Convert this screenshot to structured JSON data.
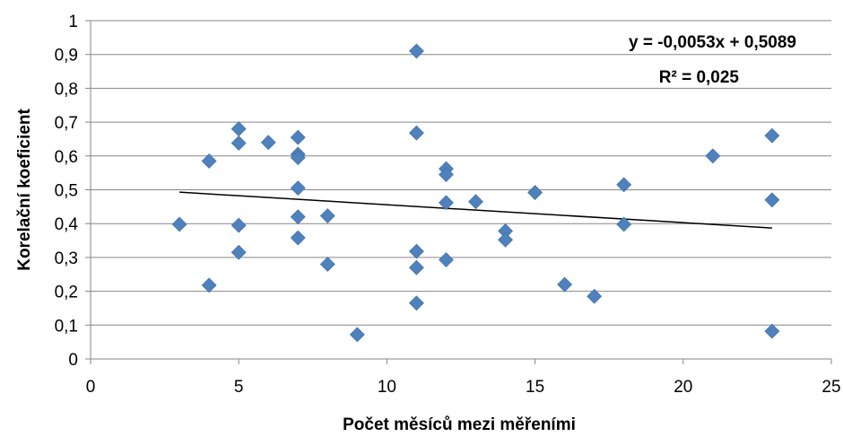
{
  "chart_data": {
    "type": "scatter",
    "xlabel": "Počet měsíců mezi měřeními",
    "ylabel": "Korelační koeficient",
    "xlim": [
      0,
      25
    ],
    "ylim": [
      0,
      1
    ],
    "x_ticks": [
      "0",
      "5",
      "10",
      "15",
      "20",
      "25"
    ],
    "y_ticks": [
      "0",
      "0,1",
      "0,2",
      "0,3",
      "0,4",
      "0,5",
      "0,6",
      "0,7",
      "0,8",
      "0,9",
      "1"
    ],
    "grid": "horizontal",
    "marker": "diamond",
    "marker_color": "#4F81BD",
    "trendline": {
      "type": "linear",
      "slope": -0.0053,
      "intercept": 0.5089,
      "x_range": [
        3,
        23
      ],
      "color": "#000000",
      "equation_label": "y = -0,0053x + 0,5089",
      "r2_label": "R² = 0,025"
    },
    "points": [
      {
        "x": 3,
        "y": 0.398
      },
      {
        "x": 4,
        "y": 0.585
      },
      {
        "x": 4,
        "y": 0.218
      },
      {
        "x": 5,
        "y": 0.68
      },
      {
        "x": 5,
        "y": 0.638
      },
      {
        "x": 5,
        "y": 0.395
      },
      {
        "x": 5,
        "y": 0.315
      },
      {
        "x": 6,
        "y": 0.64
      },
      {
        "x": 7,
        "y": 0.655
      },
      {
        "x": 7,
        "y": 0.605
      },
      {
        "x": 7,
        "y": 0.595
      },
      {
        "x": 7,
        "y": 0.505
      },
      {
        "x": 7,
        "y": 0.42
      },
      {
        "x": 7,
        "y": 0.358
      },
      {
        "x": 8,
        "y": 0.423
      },
      {
        "x": 8,
        "y": 0.28
      },
      {
        "x": 9,
        "y": 0.072
      },
      {
        "x": 11,
        "y": 0.91
      },
      {
        "x": 11,
        "y": 0.668
      },
      {
        "x": 11,
        "y": 0.318
      },
      {
        "x": 11,
        "y": 0.27
      },
      {
        "x": 11,
        "y": 0.165
      },
      {
        "x": 12,
        "y": 0.562
      },
      {
        "x": 12,
        "y": 0.545
      },
      {
        "x": 12,
        "y": 0.462
      },
      {
        "x": 12,
        "y": 0.293
      },
      {
        "x": 13,
        "y": 0.465
      },
      {
        "x": 14,
        "y": 0.378
      },
      {
        "x": 14,
        "y": 0.352
      },
      {
        "x": 15,
        "y": 0.492
      },
      {
        "x": 16,
        "y": 0.22
      },
      {
        "x": 17,
        "y": 0.185
      },
      {
        "x": 18,
        "y": 0.515
      },
      {
        "x": 18,
        "y": 0.398
      },
      {
        "x": 21,
        "y": 0.6
      },
      {
        "x": 23,
        "y": 0.66
      },
      {
        "x": 23,
        "y": 0.47
      },
      {
        "x": 23,
        "y": 0.082
      }
    ]
  }
}
